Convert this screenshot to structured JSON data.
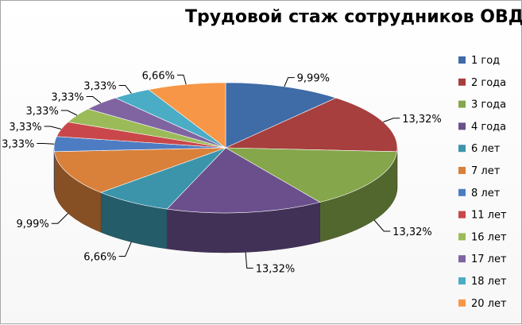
{
  "chart_data": {
    "type": "pie",
    "title": "Трудовой стаж сотрудников ОВД",
    "legend_position": "right",
    "categories": [
      "1 год",
      "2 года",
      "3 года",
      "4 года",
      "6 лет",
      "7 лет",
      "8 лет",
      "11 лет",
      "16 лет",
      "17 лет",
      "18 лет",
      "20 лет"
    ],
    "values": [
      9.99,
      13.32,
      13.32,
      13.32,
      6.66,
      9.99,
      3.33,
      3.33,
      3.33,
      3.33,
      3.33,
      6.66
    ],
    "labels": [
      "9,99%",
      "13,32%",
      "13,32%",
      "13,32%",
      "6,66%",
      "9,99%",
      "3,33%",
      "3,33%",
      "3,33%",
      "3,33%",
      "3,33%",
      "6,66%"
    ],
    "colors": [
      "#3f6ba7",
      "#a63f3d",
      "#85a64a",
      "#6b4f8c",
      "#3c94ab",
      "#d9803a",
      "#4d7cc2",
      "#c9474a",
      "#9bbb59",
      "#8064a2",
      "#4bacc6",
      "#f79646"
    ]
  }
}
